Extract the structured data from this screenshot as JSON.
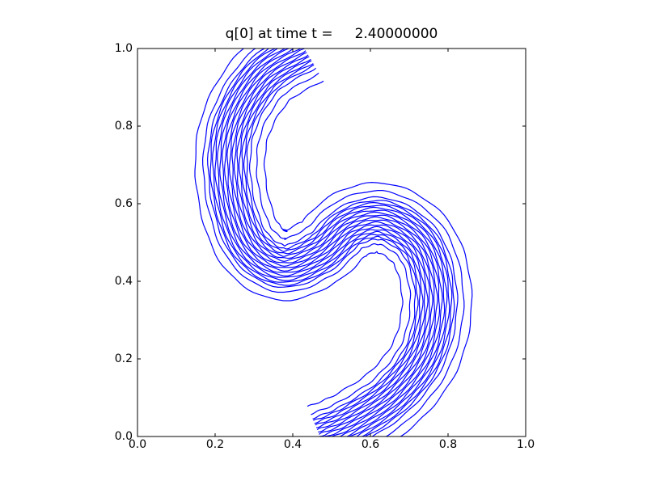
{
  "chart_data": {
    "type": "contour",
    "title": "q[0] at time t =     2.40000000",
    "color": "#0000ff",
    "xlim": [
      0,
      1
    ],
    "ylim": [
      0,
      1
    ],
    "xticks": [
      {
        "value": 0,
        "label": "0.0"
      },
      0.2,
      0.4,
      0.6,
      0.8,
      {
        "value": 1,
        "label": "1.0"
      }
    ],
    "yticks": [
      {
        "value": 0,
        "label": "0.0"
      },
      0.2,
      0.4,
      0.6,
      0.8,
      {
        "value": 1,
        "label": "1.0"
      }
    ]
  }
}
